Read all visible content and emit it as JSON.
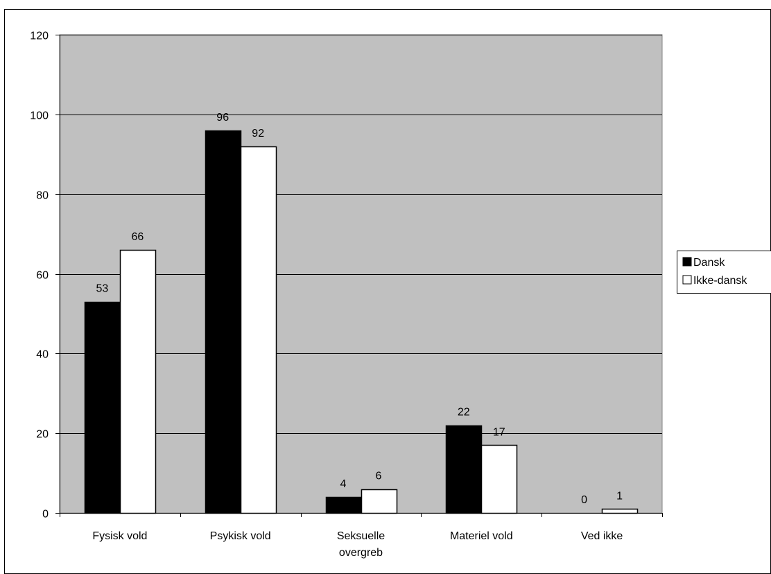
{
  "chart_data": {
    "type": "bar",
    "title": "",
    "xlabel": "",
    "ylabel": "",
    "categories": [
      [
        "Fysisk vold"
      ],
      [
        "Psykisk vold"
      ],
      [
        "Seksuelle",
        "overgreb"
      ],
      [
        "Materiel vold"
      ],
      [
        "Ved ikke"
      ]
    ],
    "series": [
      {
        "name": "Dansk",
        "values": [
          53,
          96,
          4,
          22,
          0
        ],
        "color": "#000000"
      },
      {
        "name": "Ikke-dansk",
        "values": [
          66,
          92,
          6,
          17,
          1
        ],
        "color": "#ffffff"
      }
    ],
    "ylim": [
      0,
      120
    ],
    "yticks": [
      0,
      20,
      40,
      60,
      80,
      100,
      120
    ],
    "grid": true,
    "legend_position": "right",
    "plot_background": "#c0c0c0",
    "gridline_color": "#000000",
    "bar_stroke": "#000000",
    "data_labels": true
  }
}
